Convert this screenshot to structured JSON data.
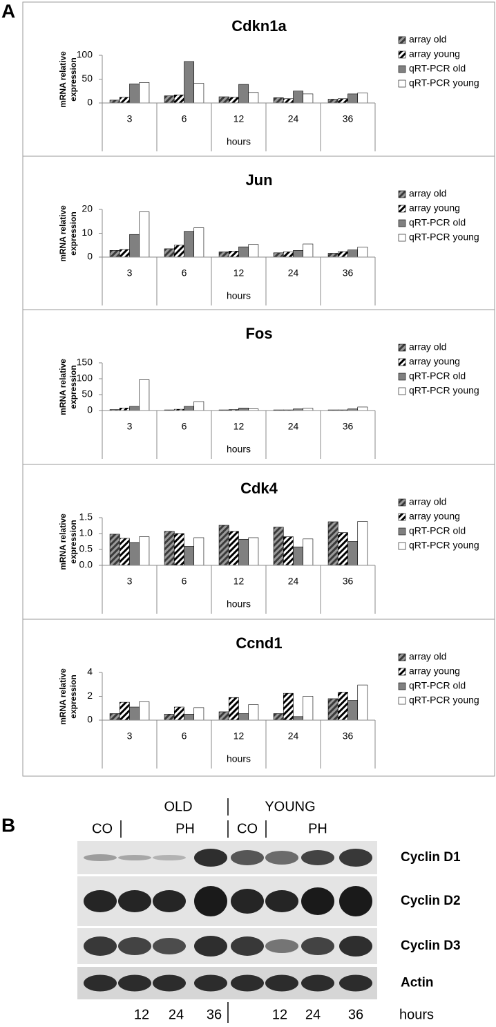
{
  "panel_labels": [
    "A",
    "B"
  ],
  "chart_data": [
    {
      "type": "bar",
      "title": "Cdkn1a",
      "categories": [
        "3",
        "6",
        "12",
        "24",
        "36"
      ],
      "x_label": "hours",
      "y_label": [
        "mRNA relative",
        "expression"
      ],
      "ylim": [
        0,
        100
      ],
      "yticks": [
        0,
        50,
        100
      ],
      "series": [
        {
          "name": "array old",
          "color": "#3a3a3a",
          "stripe": "#9a9a9a",
          "values": [
            6,
            15,
            13,
            11,
            8
          ]
        },
        {
          "name": "array young",
          "color": "#ffffff",
          "stripe": "#000000",
          "values": [
            12,
            17,
            12,
            9,
            9
          ]
        },
        {
          "name": "qRT-PCR old",
          "color": "#808080",
          "values": [
            40,
            87,
            39,
            25,
            19
          ]
        },
        {
          "name": "qRT-PCR young",
          "color": "#ffffff",
          "values": [
            43,
            41,
            22,
            19,
            21
          ]
        }
      ]
    },
    {
      "type": "bar",
      "title": "Jun",
      "categories": [
        "3",
        "6",
        "12",
        "24",
        "36"
      ],
      "x_label": "hours",
      "y_label": [
        "mRNA relative",
        "expression"
      ],
      "ylim": [
        0,
        20
      ],
      "yticks": [
        0,
        10,
        20
      ],
      "series": [
        {
          "name": "array old",
          "color": "#3a3a3a",
          "stripe": "#9a9a9a",
          "values": [
            2.8,
            3.5,
            2.2,
            1.8,
            1.6
          ]
        },
        {
          "name": "array young",
          "color": "#ffffff",
          "stripe": "#000000",
          "values": [
            3.2,
            5,
            2.5,
            2.2,
            2.3
          ]
        },
        {
          "name": "qRT-PCR old",
          "color": "#808080",
          "values": [
            9.5,
            10.8,
            4.3,
            2.8,
            3
          ]
        },
        {
          "name": "qRT-PCR young",
          "color": "#ffffff",
          "values": [
            19,
            12.3,
            5.3,
            5.5,
            4.2
          ]
        }
      ]
    },
    {
      "type": "bar",
      "title": "Fos",
      "categories": [
        "3",
        "6",
        "12",
        "24",
        "36"
      ],
      "x_label": "hours",
      "y_label": [
        "mRNA relative",
        "expression"
      ],
      "ylim": [
        0,
        150
      ],
      "yticks": [
        0,
        50,
        100,
        150
      ],
      "series": [
        {
          "name": "array old",
          "color": "#3a3a3a",
          "stripe": "#9a9a9a",
          "values": [
            3,
            2,
            2,
            2,
            2
          ]
        },
        {
          "name": "array young",
          "color": "#ffffff",
          "stripe": "#000000",
          "values": [
            8,
            4,
            3,
            2,
            2
          ]
        },
        {
          "name": "qRT-PCR old",
          "color": "#808080",
          "values": [
            13,
            13,
            8,
            5,
            5
          ]
        },
        {
          "name": "qRT-PCR young",
          "color": "#ffffff",
          "values": [
            97,
            28,
            5,
            7,
            11
          ]
        }
      ]
    },
    {
      "type": "bar",
      "title": "Cdk4",
      "categories": [
        "3",
        "6",
        "12",
        "24",
        "36"
      ],
      "x_label": "hours",
      "y_label": [
        "mRNA relative",
        "expression"
      ],
      "ylim": [
        0,
        1.5
      ],
      "yticks": [
        {
          "value": 0,
          "label": "0.0"
        },
        0.5,
        {
          "value": 1,
          "label": "1.0"
        },
        1.5
      ],
      "series": [
        {
          "name": "array old",
          "color": "#3a3a3a",
          "stripe": "#9a9a9a",
          "values": [
            0.98,
            1.07,
            1.26,
            1.2,
            1.37
          ]
        },
        {
          "name": "array young",
          "color": "#ffffff",
          "stripe": "#000000",
          "values": [
            0.85,
            1.0,
            1.07,
            0.9,
            1.03
          ]
        },
        {
          "name": "qRT-PCR old",
          "color": "#808080",
          "values": [
            0.72,
            0.6,
            0.82,
            0.58,
            0.75
          ]
        },
        {
          "name": "qRT-PCR young",
          "color": "#ffffff",
          "values": [
            0.9,
            0.87,
            0.87,
            0.83,
            1.38
          ]
        }
      ]
    },
    {
      "type": "bar",
      "title": "Ccnd1",
      "categories": [
        "3",
        "6",
        "12",
        "24",
        "36"
      ],
      "x_label": "hours",
      "y_label": [
        "mRNA relative",
        "expression"
      ],
      "ylim": [
        0,
        4
      ],
      "yticks": [
        0,
        2,
        4
      ],
      "series": [
        {
          "name": "array old",
          "color": "#3a3a3a",
          "stripe": "#9a9a9a",
          "values": [
            0.55,
            0.5,
            0.7,
            0.55,
            1.8
          ]
        },
        {
          "name": "array young",
          "color": "#ffffff",
          "stripe": "#000000",
          "values": [
            1.5,
            1.1,
            1.9,
            2.25,
            2.35
          ]
        },
        {
          "name": "qRT-PCR old",
          "color": "#808080",
          "values": [
            1.1,
            0.5,
            0.55,
            0.3,
            1.65
          ]
        },
        {
          "name": "qRT-PCR young",
          "color": "#ffffff",
          "values": [
            1.55,
            1.05,
            1.3,
            2.0,
            2.95
          ]
        }
      ]
    }
  ],
  "blot": {
    "groups": [
      "OLD",
      "YOUNG"
    ],
    "conditions": [
      "CO",
      "PH",
      "CO",
      "PH"
    ],
    "proteins": [
      "Cyclin D1",
      "Cyclin D2",
      "Cyclin D3",
      "Actin"
    ],
    "timepoints": [
      "12",
      "24",
      "36",
      "12",
      "24",
      "36"
    ],
    "time_label": "hours"
  }
}
